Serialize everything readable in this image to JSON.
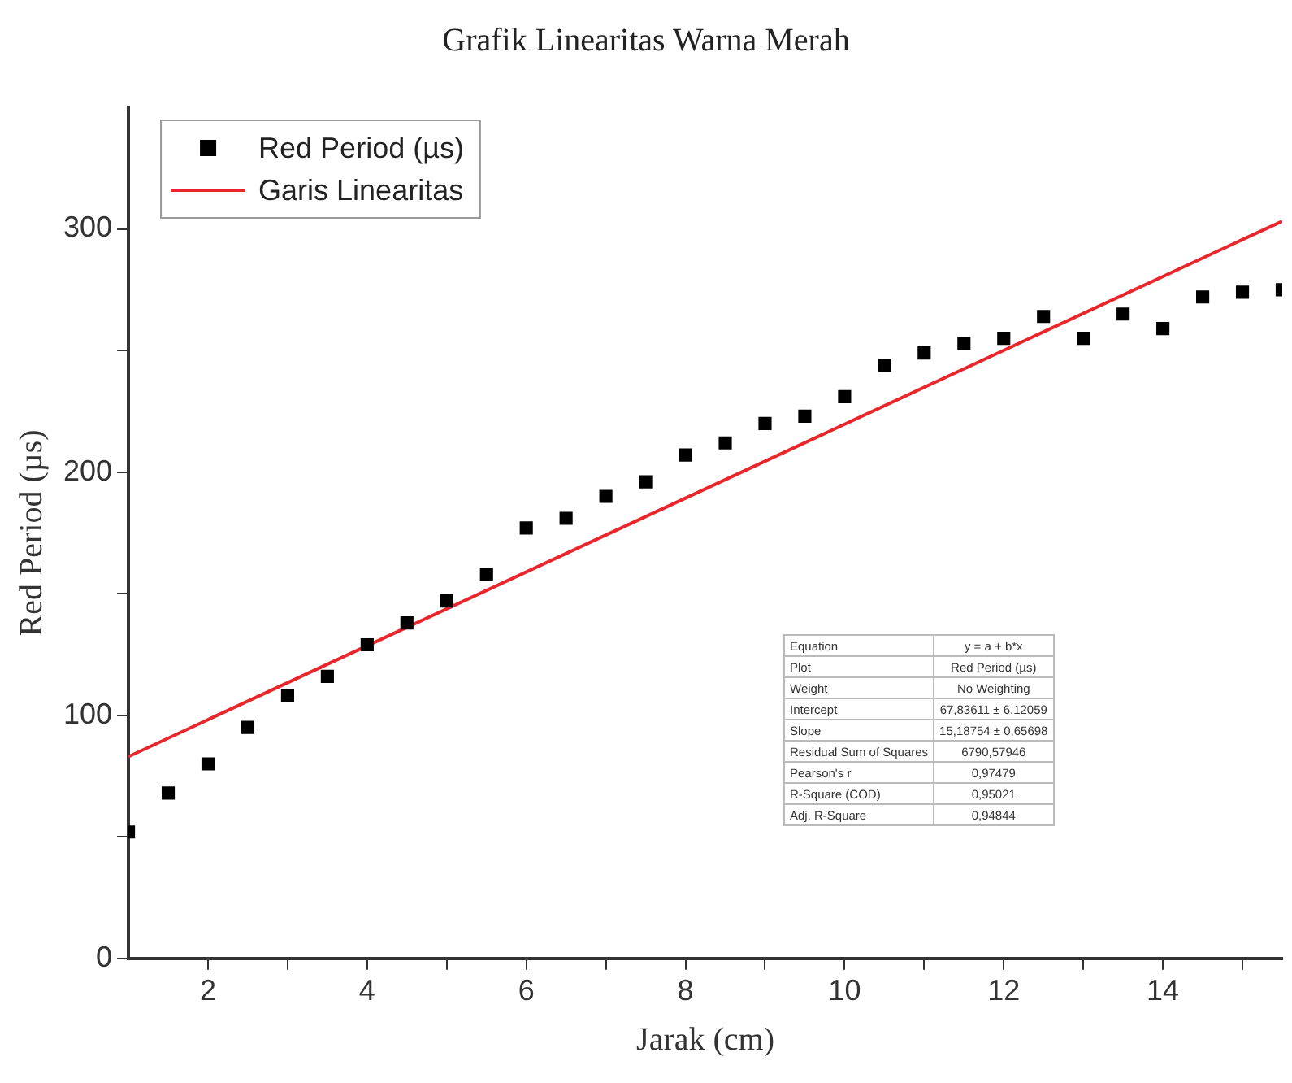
{
  "chart_data": {
    "type": "scatter",
    "title": "Grafik Linearitas Warna Merah",
    "xlabel": "Jarak (cm)",
    "ylabel": "Red Period (µs)",
    "xlim": [
      1,
      15.5
    ],
    "ylim": [
      0,
      350
    ],
    "xticks": [
      2,
      {
        "value": 3,
        "label": null
      },
      4,
      {
        "value": 5,
        "label": null
      },
      6,
      {
        "value": 7,
        "label": null
      },
      8,
      {
        "value": 9,
        "label": null
      },
      10,
      {
        "value": 11,
        "label": null
      },
      12,
      {
        "value": 13,
        "label": null
      },
      14,
      {
        "value": 15,
        "label": null
      }
    ],
    "yticks": [
      0,
      {
        "value": 50,
        "label": null
      },
      100,
      {
        "value": 150,
        "label": null
      },
      200,
      {
        "value": 250,
        "label": null
      },
      300
    ],
    "grid": false,
    "legend": "top left",
    "series": [
      {
        "name": "Red Period (µs)",
        "marker": "square",
        "color": "#000000",
        "x": [
          1,
          1.5,
          2,
          2.5,
          3,
          3.5,
          4,
          4.5,
          5,
          5.5,
          6,
          6.5,
          7,
          7.5,
          8,
          8.5,
          9,
          9.5,
          10,
          10.5,
          11,
          11.5,
          12,
          12.5,
          13,
          13.5,
          14,
          14.5,
          15,
          15.5
        ],
        "values": [
          52,
          68,
          80,
          95,
          108,
          116,
          129,
          138,
          147,
          158,
          177,
          181,
          190,
          196,
          207,
          212,
          220,
          223,
          231,
          244,
          249,
          253,
          255,
          264,
          255,
          265,
          259,
          272,
          274,
          275
        ]
      },
      {
        "name": "Garis Linearitas",
        "type": "line",
        "marker": "none",
        "color": "#e8262b",
        "x": [
          1,
          15.5
        ],
        "values": [
          83.0,
          303.2
        ]
      }
    ],
    "annotations": [
      "Equation",
      "y = a + b*x",
      "Plot",
      "Red Period (µs)",
      "Weight",
      "No Weighting",
      "Intercept",
      "67,83611 ± 6,12059",
      "Slope",
      "15,18754 ± 0,65698",
      "Residual Sum of Squares",
      "6790,57946",
      "Pearson's r",
      "0,97479",
      "R-Square (COD)",
      "0,95021",
      "Adj. R-Square",
      "0,94844"
    ]
  }
}
